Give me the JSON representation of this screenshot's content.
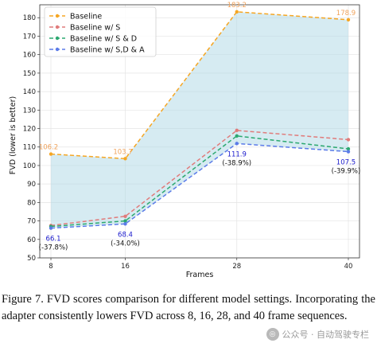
{
  "chart_data": {
    "type": "line",
    "title": "",
    "xlabel": "Frames",
    "ylabel": "FVD (lower is better)",
    "x": [
      8,
      16,
      28,
      40
    ],
    "x_ticks": [
      "8",
      "16",
      "28",
      "40"
    ],
    "y_ticks": [
      "50",
      "60",
      "70",
      "80",
      "90",
      "100",
      "110",
      "120",
      "130",
      "140",
      "150",
      "160",
      "170",
      "180"
    ],
    "ylim": [
      50,
      187
    ],
    "grid": true,
    "legend_position": "top-left",
    "fill_between": {
      "upper": "Baseline",
      "lower": "Baseline w/ S,D & A",
      "color": "#add8e6"
    },
    "series": [
      {
        "name": "Baseline",
        "values": [
          106.2,
          103.7,
          183.2,
          178.9
        ],
        "color": "#f5a623"
      },
      {
        "name": "Baseline w/ S",
        "values": [
          67.5,
          72.5,
          119.0,
          114.0
        ],
        "color": "#e07b7b"
      },
      {
        "name": "Baseline w/ S & D",
        "values": [
          67.0,
          70.0,
          116.0,
          109.0
        ],
        "color": "#2ca870"
      },
      {
        "name": "Baseline w/ S,D & A",
        "values": [
          66.1,
          68.4,
          111.9,
          107.5
        ],
        "color": "#5b7be8"
      }
    ],
    "labels_top": [
      {
        "text": "106.2",
        "color": "#f0a35c"
      },
      {
        "text": "103.7",
        "color": "#f0a35c"
      },
      {
        "text": "183.2",
        "color": "#f0a35c"
      },
      {
        "text": "178.9",
        "color": "#f0a35c"
      }
    ],
    "labels_bottom": [
      {
        "value": "66.1",
        "pct": "(-37.8%)"
      },
      {
        "value": "68.4",
        "pct": "(-34.0%)"
      },
      {
        "value": "111.9",
        "pct": "(-38.9%)"
      },
      {
        "value": "107.5",
        "pct": "(-39.9%)"
      }
    ]
  },
  "caption": "Figure 7.  FVD scores comparison for different model settings. Incorporating the adapter consistently lowers FVD across 8, 16, 28, and 40 frame sequences.",
  "watermark": "公众号 · 自动驾驶专栏"
}
